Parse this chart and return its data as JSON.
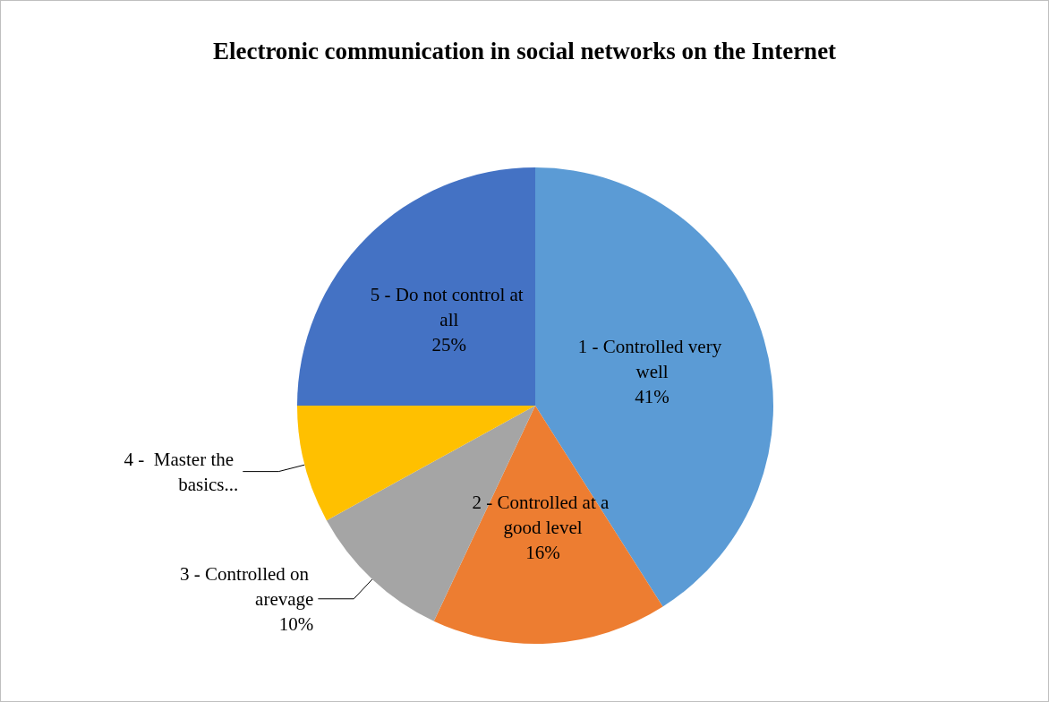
{
  "chart_data": {
    "type": "pie",
    "title": "Electronic communication in social networks on the Internet",
    "categories": [
      "1 - Controlled very well",
      "2 - Controlled at a good level",
      "3 - Controlled on arevage",
      "4 -  Master the basics...",
      "5 - Do not control at all"
    ],
    "values": [
      41,
      16,
      10,
      8,
      25
    ],
    "value_labels": [
      "41%",
      "16%",
      "10%",
      null,
      "25%"
    ],
    "colors": [
      "#5b9bd5",
      "#ed7d31",
      "#a5a5a5",
      "#ffc000",
      "#4472c4"
    ],
    "legend": false
  }
}
